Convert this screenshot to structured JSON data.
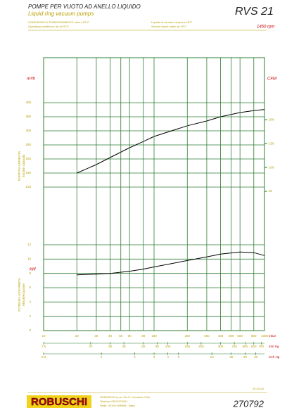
{
  "header": {
    "title": "POMPE PER VUOTO AD ANELLO LIQUIDO",
    "subtitle": "Liquid ring vacuum pumps",
    "model": "RVS 21",
    "speed": "1450 rpm",
    "notes": [
      "CONDIZIONI DI FUNZIONAMENTO: aria a 20°C",
      "Operating conditions: air at 20°C",
      "Liquido di servizio: acqua a 15°C",
      "Service liquid: water at 15°C"
    ]
  },
  "chart_data": [
    {
      "type": "line",
      "y_label": "PORTATA ASPIRATA",
      "y_label_en": "Suction capacity",
      "y_unit": "m³/h",
      "y2_unit": "CFM",
      "log_x": true,
      "xlim": [
        10,
        1000
      ],
      "ylim": [
        0,
        550
      ],
      "yticks": [
        100,
        150,
        200,
        250,
        300,
        350,
        400
      ],
      "y2lim": [
        0,
        324
      ],
      "y2ticks": [
        50,
        100,
        150,
        200
      ],
      "x": [
        20,
        30,
        40,
        60,
        80,
        100,
        200,
        300,
        400,
        600,
        800,
        1000
      ],
      "values": [
        150,
        180,
        205,
        240,
        262,
        280,
        318,
        335,
        350,
        365,
        372,
        376
      ],
      "color": "#000000",
      "grid": true
    },
    {
      "type": "line",
      "y_label": "POTENZA ASSORBITA",
      "y_label_en": "Absorbed power",
      "y_unit": "kW",
      "log_x": true,
      "xlim": [
        10,
        1000
      ],
      "ylim": [
        0,
        12
      ],
      "yticks": [
        0,
        2,
        4,
        6,
        8,
        10,
        12
      ],
      "xticks": [
        10,
        20,
        30,
        40,
        50,
        60,
        80,
        100,
        200,
        300,
        400,
        500,
        600,
        800,
        1000
      ],
      "x_unit": "mbar",
      "x2lim": [
        7.5,
        750
      ],
      "x2ticks": [
        7.5,
        20,
        30,
        40,
        60,
        80,
        100,
        150,
        200,
        300,
        400,
        500,
        600,
        700
      ],
      "x2_unit": "mm Hg",
      "x3lim": [
        0.3,
        30
      ],
      "x3ticks": [
        0.3,
        1,
        2,
        3,
        4,
        5,
        10,
        15,
        20,
        25
      ],
      "x3_unit": "inch Hg",
      "x": [
        20,
        30,
        40,
        60,
        80,
        100,
        200,
        300,
        400,
        600,
        800,
        1000
      ],
      "values": [
        7.8,
        7.9,
        8.0,
        8.3,
        8.6,
        8.9,
        9.8,
        10.3,
        10.7,
        11.0,
        10.9,
        10.5
      ],
      "color": "#000000",
      "grid": true
    }
  ],
  "footer": {
    "brand": "ROBUSCHI",
    "address": [
      "ROBUSCHI s.p.a. Via S. Leonardo 71/A",
      "Telefono 0521/274911",
      "Sede: 43100 PARMA - Italia"
    ],
    "date": "20-03-00",
    "code": "270792"
  }
}
